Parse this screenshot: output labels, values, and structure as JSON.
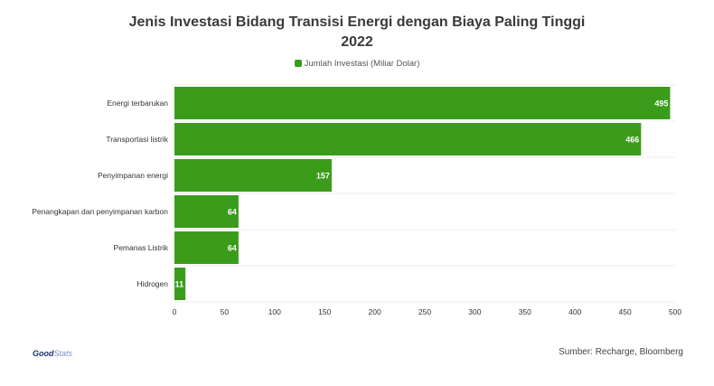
{
  "chart_data": {
    "type": "bar",
    "orientation": "horizontal",
    "title_line1": "Jenis Investasi Bidang Transisi Energi dengan Biaya Paling Tinggi",
    "title_line2": "2022",
    "xlabel": "",
    "ylabel": "",
    "categories": [
      "Energi terbarukan",
      "Transportasi listrik",
      "Penyimpanan energi",
      "Penangkapan dan penyimpanan karbon",
      "Pemanas Listrik",
      "Hidrogen"
    ],
    "series": [
      {
        "name": "Jumlah Investasi (Miliar Dolar)",
        "values": [
          495,
          466,
          157,
          64,
          64,
          11
        ]
      }
    ],
    "xlim": [
      0,
      500
    ],
    "xticks": [
      "0",
      "50",
      "100",
      "150",
      "200",
      "250",
      "300",
      "350",
      "400",
      "450",
      "500"
    ],
    "bar_color": "#3a9c1a",
    "grid": true,
    "legend_position": "top-center",
    "data_labels": true
  },
  "footer": {
    "logo_bold": "Good",
    "logo_light": "Stats",
    "source": "Sumber: Recharge, Bloomberg"
  }
}
